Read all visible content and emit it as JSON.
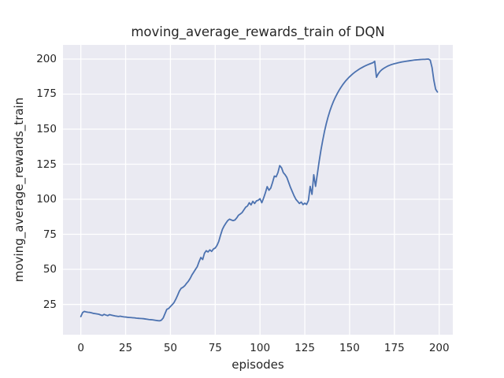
{
  "chart_data": {
    "type": "line",
    "title": "moving_average_rewards_train of DQN",
    "xlabel": "episodes",
    "ylabel": "moving_average_rewards_train",
    "xticks": [
      0,
      25,
      50,
      75,
      100,
      125,
      150,
      175,
      200
    ],
    "yticks": [
      25,
      50,
      75,
      100,
      125,
      150,
      175,
      200
    ],
    "xlim": [
      -9.95,
      207.6
    ],
    "ylim": [
      3.4,
      210.1
    ],
    "grid": true,
    "legend_position": "none",
    "style": {
      "figure_background": "#FFFFFF",
      "plot_background": "#EAEAF2",
      "grid_color": "#FFFFFF",
      "line_color": "#4C72B0",
      "text_color": "#262626"
    },
    "series": [
      {
        "name": "moving_average_rewards_train",
        "x_start": 0,
        "x_step": 1,
        "values": [
          16.3,
          19.2,
          20.0,
          19.6,
          19.4,
          19.3,
          19.0,
          18.6,
          18.4,
          18.2,
          18.0,
          17.5,
          17.1,
          17.9,
          17.4,
          17.0,
          17.7,
          17.4,
          17.1,
          16.8,
          16.6,
          16.4,
          16.6,
          16.3,
          16.1,
          16.0,
          15.8,
          15.7,
          15.6,
          15.5,
          15.4,
          15.2,
          15.1,
          15.0,
          14.9,
          14.8,
          14.6,
          14.4,
          14.2,
          14.1,
          14.0,
          13.8,
          13.6,
          13.4,
          13.3,
          13.8,
          15.4,
          18.5,
          21.5,
          22.1,
          23.5,
          24.8,
          26.3,
          28.7,
          31.5,
          34.5,
          36.5,
          37.2,
          38.3,
          40.0,
          41.5,
          43.5,
          46.0,
          48.0,
          50.0,
          52.0,
          55.5,
          58.5,
          57.0,
          61.5,
          63.3,
          62.4,
          63.9,
          62.8,
          64.5,
          65.2,
          67.1,
          70.0,
          74.5,
          78.5,
          81.0,
          83.0,
          84.8,
          85.8,
          85.2,
          84.8,
          85.2,
          86.7,
          88.6,
          89.5,
          90.5,
          92.4,
          94.3,
          95.2,
          97.5,
          96.0,
          98.5,
          97.0,
          98.8,
          99.3,
          100.4,
          97.5,
          100.8,
          104.6,
          109.0,
          106.4,
          108.0,
          112.0,
          116.5,
          116.0,
          119.0,
          124.0,
          122.5,
          119.0,
          117.5,
          115.5,
          112.0,
          108.5,
          105.5,
          102.5,
          100.0,
          98.5,
          97.0,
          98.0,
          96.2,
          97.2,
          96.3,
          99.0,
          109.2,
          103.5,
          117.5,
          109.2,
          118.0,
          127.0,
          135.0,
          142.0,
          148.5,
          154.0,
          158.8,
          163.0,
          166.6,
          169.8,
          172.6,
          175.1,
          177.4,
          179.5,
          181.4,
          183.1,
          184.7,
          186.1,
          187.4,
          188.6,
          189.7,
          190.7,
          191.6,
          192.5,
          193.3,
          194.0,
          194.7,
          195.3,
          195.9,
          196.4,
          196.9,
          197.4,
          198.4,
          187.0,
          189.5,
          191.2,
          192.4,
          193.3,
          194.1,
          194.8,
          195.4,
          195.9,
          196.3,
          196.7,
          197.0,
          197.3,
          197.6,
          197.9,
          198.1,
          198.3,
          198.5,
          198.7,
          198.9,
          199.1,
          199.3,
          199.4,
          199.5,
          199.6,
          199.7,
          199.8,
          199.8,
          199.9,
          200.0,
          199.2,
          194.0,
          185.0,
          178.5,
          176.5
        ]
      }
    ]
  }
}
